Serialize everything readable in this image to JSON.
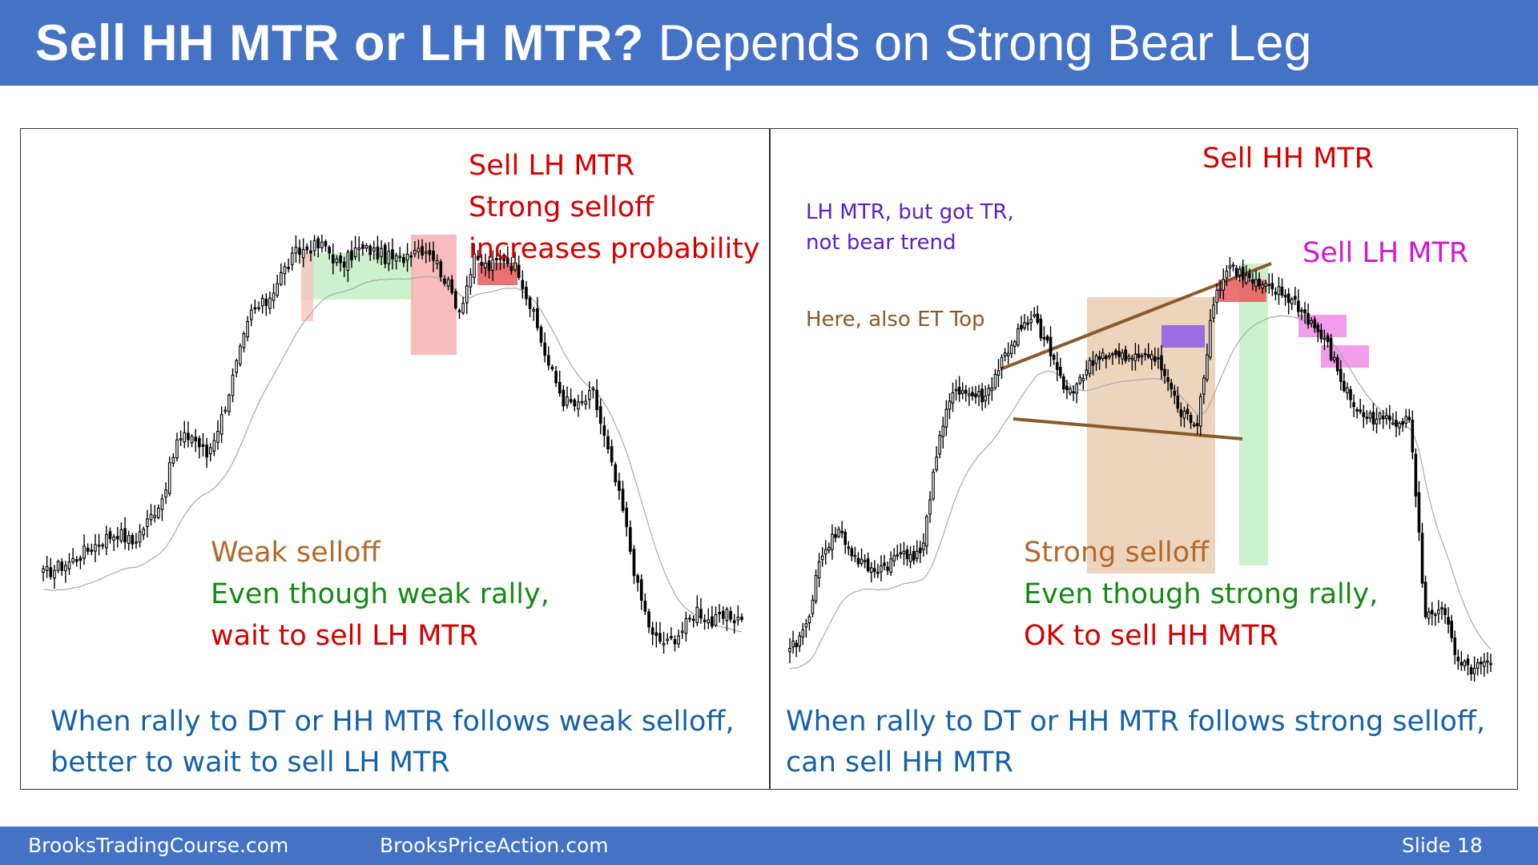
{
  "slide": {
    "title_bold": "Sell HH MTR or LH MTR?",
    "title_regular": "Depends on Strong Bear Leg",
    "footer_left": "BrooksTradingCourse.com",
    "footer_middle": "BrooksPriceAction.com",
    "footer_right": "Slide  18"
  },
  "left_panel": {
    "annotation_top": [
      "Sell LH MTR",
      "Strong selloff",
      "increases probability"
    ],
    "annotation_mid": [
      "Weak selloff",
      "Even though weak rally,",
      "wait to sell LH MTR"
    ],
    "summary": [
      "When rally to DT or HH MTR follows weak selloff,",
      "better to wait to sell LH MTR"
    ]
  },
  "right_panel": {
    "annotation_top": "Sell HH MTR",
    "annotation_note": [
      "LH MTR, but got TR,",
      "not bear trend"
    ],
    "annotation_et": "Here, also ET Top",
    "annotation_lh": "Sell LH MTR",
    "annotation_mid": [
      "Strong selloff",
      "Even though strong rally,",
      "OK to sell HH MTR"
    ],
    "summary": [
      "When rally to DT or HH MTR follows strong selloff,",
      "can sell HH MTR"
    ]
  },
  "colors": {
    "title_bg": "#4472c4",
    "red_text": "#d40000",
    "brown_text": "#b06a2c",
    "green_text": "#138a13",
    "blue_text": "#1561a8",
    "purple_text": "#5a20c8",
    "magenta_text": "#d418d4",
    "green_box": "#c6efc6",
    "red_box": "#f5a6a6",
    "salmon_box": "#f4c4bc",
    "red_strong_box": "#e65a5a",
    "tan_box": "#e8c9ad",
    "violet_box": "#8a5ce6",
    "pink_box": "#f08ce6",
    "wedge_line": "#8a5a2a"
  },
  "chart_data": [
    {
      "type": "candlestick",
      "title": "",
      "xlabel": "",
      "ylabel": "",
      "grid": false,
      "moving_average": true,
      "series": [
        {
          "values": [
            100,
            102,
            104,
            107,
            110,
            112,
            109,
            115,
            122,
            138,
            140,
            134,
            145,
            160,
            175,
            178,
            186,
            192,
            194,
            194,
            188,
            193,
            193,
            191,
            190,
            194,
            193,
            185,
            176,
            190,
            188,
            191,
            187,
            174,
            160,
            150,
            148,
            152,
            135,
            118,
            96,
            82,
            80,
            84,
            90,
            86,
            88,
            87
          ]
        }
      ]
    },
    {
      "type": "candlestick",
      "title": "",
      "xlabel": "",
      "ylabel": "",
      "grid": false,
      "moving_average": true,
      "series": [
        {
          "values": [
            100,
            108,
            130,
            136,
            128,
            124,
            126,
            130,
            128,
            158,
            178,
            176,
            175,
            186,
            194,
            198,
            188,
            176,
            182,
            188,
            187,
            186,
            189,
            182,
            170,
            168,
            204,
            214,
            210,
            207,
            206,
            203,
            197,
            190,
            178,
            170,
            169,
            168,
            170,
            110,
            114,
            96,
            95,
            97
          ]
        }
      ]
    }
  ]
}
